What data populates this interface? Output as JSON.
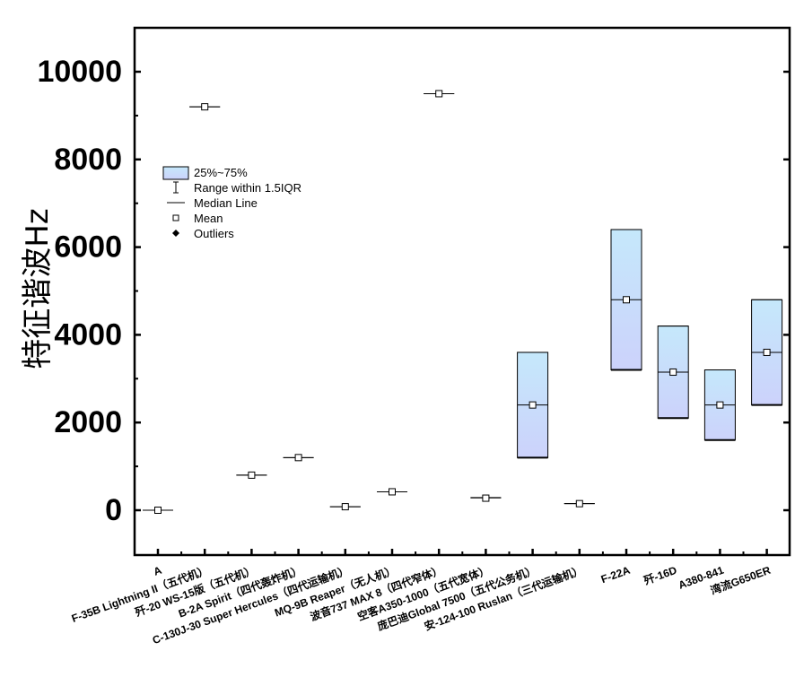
{
  "chart_data": {
    "type": "box",
    "ylabel": "特征谐波Hz",
    "ylim": [
      -1000,
      10800
    ],
    "yticks": [
      0,
      2000,
      4000,
      6000,
      8000,
      10000
    ],
    "yticklabels": [
      "0",
      "2000",
      "4000",
      "6000",
      "8000",
      "10000"
    ],
    "categories": [
      "A",
      "F-35B Lightning II（五代机）",
      "歼-20 WS-15版（五代机）",
      "B-2A Spirit（四代轰炸机）",
      "C-130J-30 Super Hercules（四代运输机）",
      "MQ-9B Reaper（无人机）",
      "波音737 MAX 8（四代窄体）",
      "空客A350-1000（五代宽体）",
      "庞巴迪Global 7500（五代公务机）",
      "安-124-100 Ruslan（三代运输机）",
      "F-22A",
      "歼-16D",
      "A380-841",
      "湾流G650ER"
    ],
    "boxes": [
      {
        "q1": 0,
        "median": 0,
        "q3": 0,
        "mean": 0
      },
      {
        "q1": 9200,
        "median": 9200,
        "q3": 9200,
        "mean": 9200
      },
      {
        "q1": 800,
        "median": 800,
        "q3": 800,
        "mean": 800
      },
      {
        "q1": 1200,
        "median": 1200,
        "q3": 1200,
        "mean": 1200
      },
      {
        "q1": 80,
        "median": 80,
        "q3": 80,
        "mean": 80
      },
      {
        "q1": 420,
        "median": 420,
        "q3": 420,
        "mean": 420
      },
      {
        "q1": 9500,
        "median": 9500,
        "q3": 9500,
        "mean": 9500
      },
      {
        "q1": 260,
        "median": 280,
        "q3": 290,
        "mean": 275
      },
      {
        "q1": 1200,
        "median": 2400,
        "q3": 3600,
        "mean": 2400
      },
      {
        "q1": 150,
        "median": 150,
        "q3": 150,
        "mean": 150
      },
      {
        "q1": 3200,
        "median": 4800,
        "q3": 6400,
        "mean": 4800
      },
      {
        "q1": 2100,
        "median": 3150,
        "q3": 4200,
        "mean": 3150
      },
      {
        "q1": 1600,
        "median": 2400,
        "q3": 3200,
        "mean": 2400
      },
      {
        "q1": 2400,
        "median": 3600,
        "q3": 4800,
        "mean": 3600
      }
    ],
    "legend": {
      "placement": "upper-left",
      "entries": [
        "25%~75%",
        "Range within 1.5IQR",
        "Median Line",
        "Mean",
        "Outliers"
      ]
    },
    "box_fill_top": "#c5e8fb",
    "box_fill_bottom": "#ccd2fb",
    "grid": false
  }
}
